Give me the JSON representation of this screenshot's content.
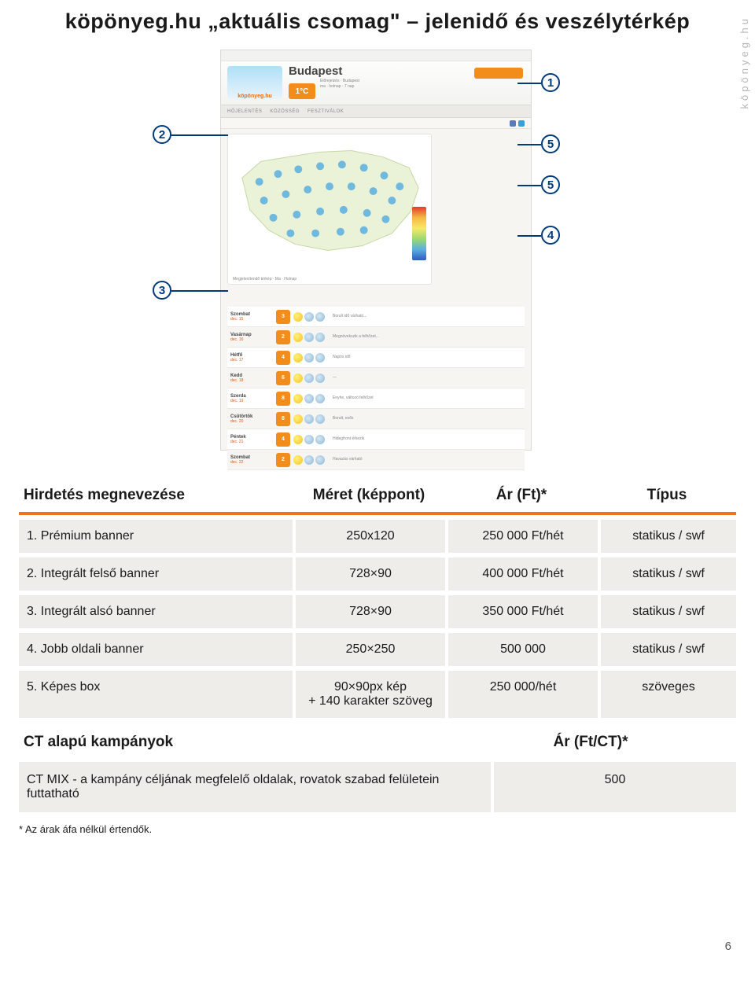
{
  "brand_side": "köpönyeg.hu",
  "page_title": "köpönyeg.hu „aktuális csomag\" – jelenidő és veszélytérkép",
  "page_number": "6",
  "footnote": "* Az árak áfa nélkül értendők.",
  "callouts": {
    "n1": "1",
    "n2": "2",
    "n3": "3",
    "n4": "4",
    "n5a": "5",
    "n5b": "5"
  },
  "colors": {
    "accent_orange": "#f2731b",
    "callout_blue": "#003a7a",
    "row_bg": "#eeede9",
    "header_rule": "#f2731b"
  },
  "screenshot": {
    "logo_text": "köpönyeg.hu",
    "city": "Budapest",
    "temp": "1°C",
    "nav": [
      "HŐJELENTÉS",
      "KÖZÖSSÉG",
      "FESZTIVÁLOK"
    ],
    "forecast_days": [
      {
        "day": "Szombat",
        "date": "dec. 15",
        "temp": "3",
        "desc": "Borult idő várható..."
      },
      {
        "day": "Vasárnap",
        "date": "dec. 16",
        "temp": "2",
        "desc": "Megnövekszik a felhőzet..."
      },
      {
        "day": "Hétfő",
        "date": "dec. 17",
        "temp": "4",
        "desc": "Napos idő"
      },
      {
        "day": "Kedd",
        "date": "dec. 18",
        "temp": "6",
        "desc": "—"
      },
      {
        "day": "Szerda",
        "date": "dec. 19",
        "temp": "8",
        "desc": "Enyhe, változó felhőzet"
      },
      {
        "day": "Csütörtök",
        "date": "dec. 20",
        "temp": "8",
        "desc": "Borult, esős"
      },
      {
        "day": "Péntek",
        "date": "dec. 21",
        "temp": "4",
        "desc": "Hidegfront érkezik"
      },
      {
        "day": "Szombat",
        "date": "dec. 22",
        "temp": "2",
        "desc": "Havazás várható"
      }
    ]
  },
  "table": {
    "headers": {
      "name": "Hirdetés megnevezése",
      "size": "Méret (képpont)",
      "price": "Ár (Ft)*",
      "type": "Típus"
    },
    "rows": [
      {
        "name": "1. Prémium banner",
        "size": "250x120",
        "price": "250 000 Ft/hét",
        "type": "statikus / swf"
      },
      {
        "name": "2. Integrált felső banner",
        "size": "728×90",
        "price": "400 000 Ft/hét",
        "type": "statikus / swf"
      },
      {
        "name": "3. Integrált alsó banner",
        "size": "728×90",
        "price": "350 000 Ft/hét",
        "type": "statikus / swf"
      },
      {
        "name": "4. Jobb oldali banner",
        "size": "250×250",
        "price": "500 000",
        "type": "statikus / swf"
      },
      {
        "name": "5. Képes box",
        "size": "90×90px kép\n+ 140 karakter szöveg",
        "price": "250 000/hét",
        "type": "szöveges"
      }
    ],
    "subheader": {
      "left": "CT alapú kampányok",
      "right": "Ár (Ft/CT)*"
    },
    "row2": {
      "name": "CT MIX - a kampány céljának megfelelő oldalak, rovatok szabad felületein futtatható",
      "price": "500"
    }
  }
}
